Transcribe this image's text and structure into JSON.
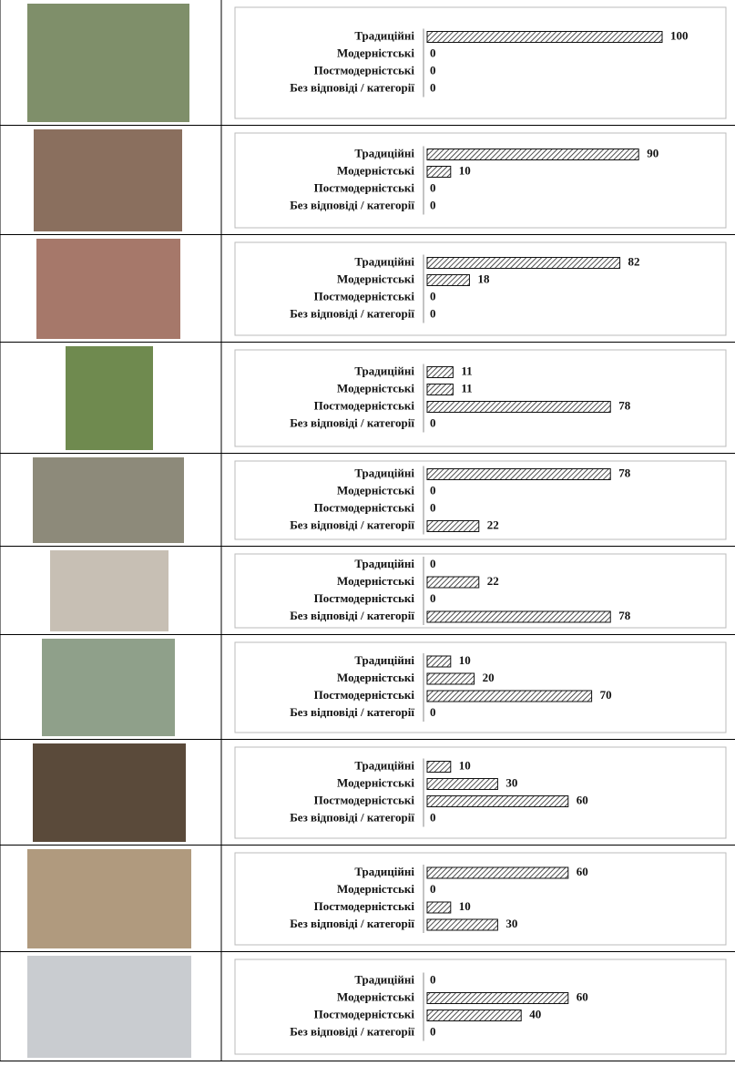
{
  "chart_data": [
    {
      "type": "bar",
      "categories": [
        "Традиційні",
        "Модерністські",
        "Постмодерністські",
        "Без відповіді / категорії"
      ],
      "values": [
        100,
        0,
        0,
        0
      ]
    },
    {
      "type": "bar",
      "categories": [
        "Традиційні",
        "Модерністські",
        "Постмодерністські",
        "Без відповіді / категорії"
      ],
      "values": [
        90,
        10,
        0,
        0
      ]
    },
    {
      "type": "bar",
      "categories": [
        "Традиційні",
        "Модерністські",
        "Постмодерністські",
        "Без відповіді / категорії"
      ],
      "values": [
        82,
        18,
        0,
        0
      ]
    },
    {
      "type": "bar",
      "categories": [
        "Традиційні",
        "Модерністські",
        "Постмодерністські",
        "Без відповіді / категорії"
      ],
      "values": [
        11,
        11,
        78,
        0
      ]
    },
    {
      "type": "bar",
      "categories": [
        "Традиційні",
        "Модерністські",
        "Постмодерністські",
        "Без відповіді / категорії"
      ],
      "values": [
        78,
        0,
        0,
        22
      ]
    },
    {
      "type": "bar",
      "categories": [
        "Традиційні",
        "Модерністські",
        "Постмодерністські",
        "Без відповіді / категорії"
      ],
      "values": [
        0,
        22,
        0,
        78
      ]
    },
    {
      "type": "bar",
      "categories": [
        "Традиційні",
        "Модерністські",
        "Постмодерністські",
        "Без відповіді / категорії"
      ],
      "values": [
        10,
        20,
        70,
        0
      ]
    },
    {
      "type": "bar",
      "categories": [
        "Традиційні",
        "Модерністські",
        "Постмодерністські",
        "Без відповіді / категорії"
      ],
      "values": [
        10,
        30,
        60,
        0
      ]
    },
    {
      "type": "bar",
      "categories": [
        "Традиційні",
        "Модерністські",
        "Постмодерністські",
        "Без відповіді / категорії"
      ],
      "values": [
        60,
        0,
        10,
        30
      ]
    },
    {
      "type": "bar",
      "categories": [
        "Традиційні",
        "Модерністські",
        "Постмодерністські",
        "Без відповіді / категорії"
      ],
      "values": [
        0,
        60,
        40,
        0
      ]
    }
  ]
}
